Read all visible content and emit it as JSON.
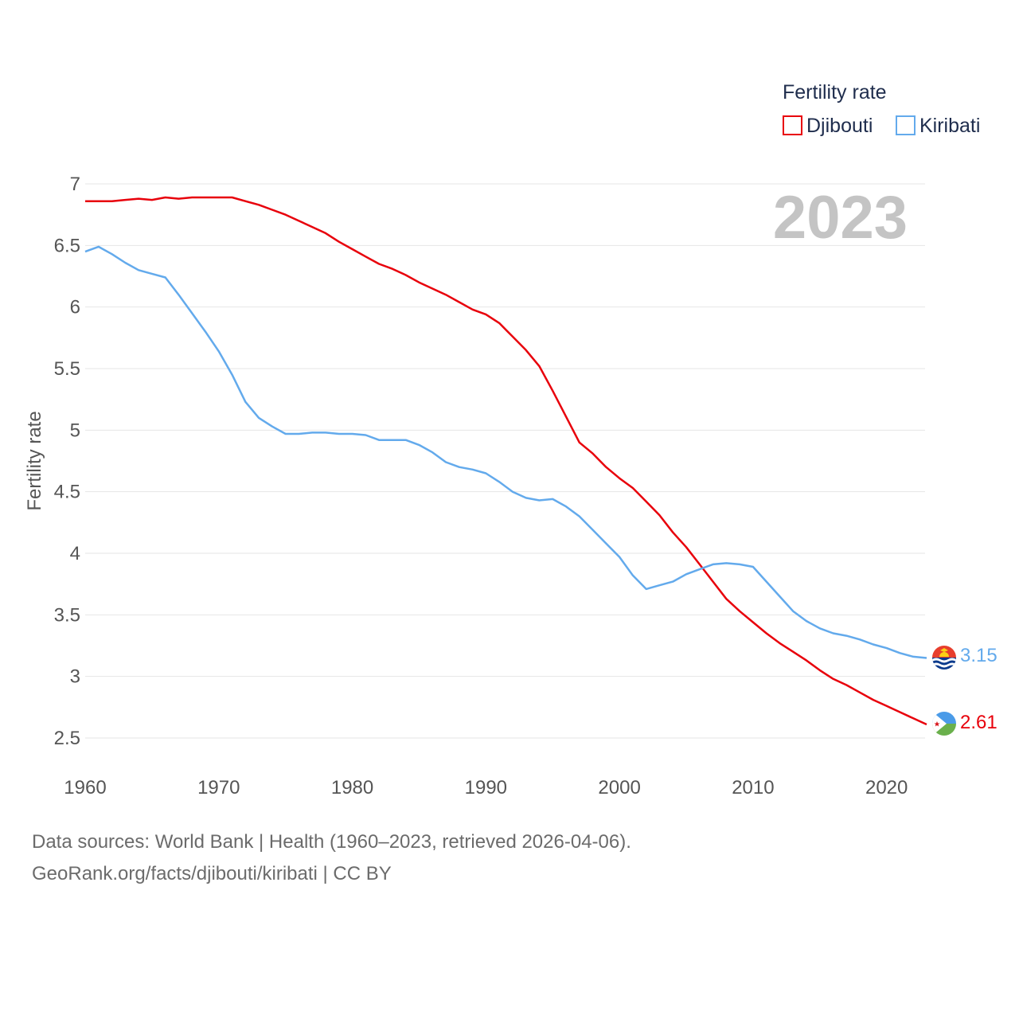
{
  "chart_data": {
    "type": "line",
    "year_label": "2023",
    "ylabel": "Fertility rate",
    "xlabel": "",
    "legend": {
      "title": "Fertility rate",
      "placement": "top-right"
    },
    "xlim": [
      1960,
      2023
    ],
    "ylim": [
      2.5,
      7
    ],
    "x_ticks": [
      "1960",
      "1970",
      "1980",
      "1990",
      "2000",
      "2010",
      "2020"
    ],
    "y_ticks": [
      "2.5",
      "3",
      "3.5",
      "4",
      "4.5",
      "5",
      "5.5",
      "6",
      "6.5",
      "7"
    ],
    "x_tick_values": [
      1960,
      1970,
      1980,
      1990,
      2000,
      2010,
      2020
    ],
    "y_tick_values": [
      2.5,
      3,
      3.5,
      4,
      4.5,
      5,
      5.5,
      6,
      6.5,
      7
    ],
    "grid": true,
    "x": [
      1960,
      1961,
      1962,
      1963,
      1964,
      1965,
      1966,
      1967,
      1968,
      1969,
      1970,
      1971,
      1972,
      1973,
      1974,
      1975,
      1976,
      1977,
      1978,
      1979,
      1980,
      1981,
      1982,
      1983,
      1984,
      1985,
      1986,
      1987,
      1988,
      1989,
      1990,
      1991,
      1992,
      1993,
      1994,
      1995,
      1996,
      1997,
      1998,
      1999,
      2000,
      2001,
      2002,
      2003,
      2004,
      2005,
      2006,
      2007,
      2008,
      2009,
      2010,
      2011,
      2012,
      2013,
      2014,
      2015,
      2016,
      2017,
      2018,
      2019,
      2020,
      2021,
      2022,
      2023
    ],
    "series": [
      {
        "name": "Djibouti",
        "color": "#e8000b",
        "end_label": "2.61",
        "values": [
          6.86,
          6.86,
          6.86,
          6.87,
          6.88,
          6.87,
          6.89,
          6.88,
          6.89,
          6.89,
          6.89,
          6.89,
          6.86,
          6.83,
          6.79,
          6.75,
          6.7,
          6.65,
          6.6,
          6.53,
          6.47,
          6.41,
          6.35,
          6.31,
          6.26,
          6.2,
          6.15,
          6.1,
          6.04,
          5.98,
          5.94,
          5.87,
          5.76,
          5.65,
          5.52,
          5.32,
          5.11,
          4.9,
          4.81,
          4.7,
          4.61,
          4.53,
          4.42,
          4.31,
          4.17,
          4.05,
          3.91,
          3.77,
          3.63,
          3.53,
          3.44,
          3.35,
          3.27,
          3.2,
          3.13,
          3.05,
          2.98,
          2.93,
          2.87,
          2.81,
          2.76,
          2.71,
          2.66,
          2.61
        ]
      },
      {
        "name": "Kiribati",
        "color": "#63aaec",
        "end_label": "3.15",
        "values": [
          6.45,
          6.49,
          6.43,
          6.36,
          6.3,
          6.27,
          6.24,
          6.1,
          5.95,
          5.8,
          5.64,
          5.45,
          5.23,
          5.1,
          5.03,
          4.97,
          4.97,
          4.98,
          4.98,
          4.97,
          4.97,
          4.96,
          4.92,
          4.92,
          4.92,
          4.88,
          4.82,
          4.74,
          4.7,
          4.68,
          4.65,
          4.58,
          4.5,
          4.45,
          4.43,
          4.44,
          4.38,
          4.3,
          4.19,
          4.08,
          3.97,
          3.82,
          3.71,
          3.74,
          3.77,
          3.83,
          3.87,
          3.91,
          3.92,
          3.91,
          3.89,
          3.77,
          3.65,
          3.53,
          3.45,
          3.39,
          3.35,
          3.33,
          3.3,
          3.26,
          3.23,
          3.19,
          3.16,
          3.15
        ]
      }
    ]
  },
  "footer": {
    "line1": "Data sources: World Bank | Health (1960–2023, retrieved 2026-04-06).",
    "line2": "GeoRank.org/facts/djibouti/kiribati | CC BY"
  }
}
